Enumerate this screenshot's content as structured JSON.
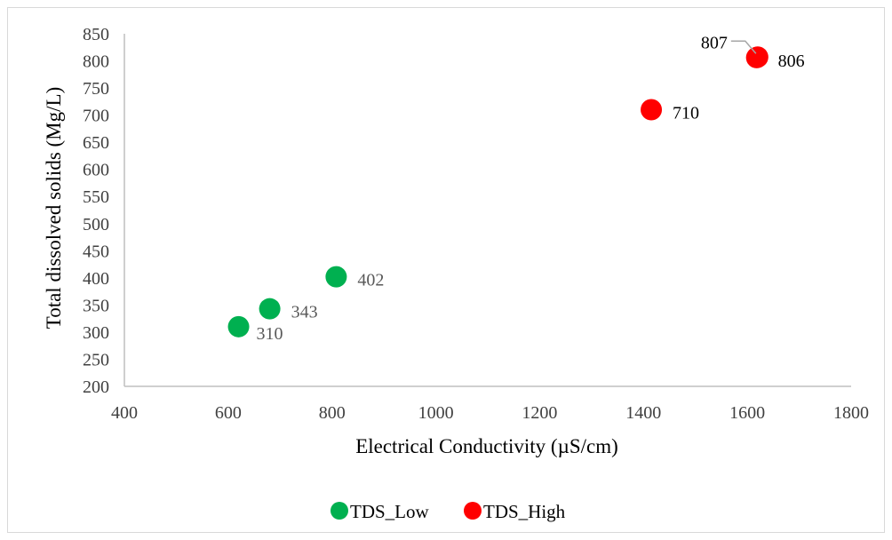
{
  "chart_data": {
    "type": "scatter",
    "xlabel": "Electrical Conductivity (µS/cm)",
    "ylabel": "Total dissolved solids (Mg/L)",
    "xlim": [
      400,
      1800
    ],
    "ylim": [
      200,
      850
    ],
    "xticks": [
      400,
      600,
      800,
      1000,
      1200,
      1400,
      1600,
      1800
    ],
    "yticks": [
      200,
      250,
      300,
      350,
      400,
      450,
      500,
      550,
      600,
      650,
      700,
      750,
      800,
      850
    ],
    "grid": false,
    "legend_position": "bottom",
    "series": [
      {
        "name": "TDS_Low",
        "color": "#00b050",
        "label_color": "#595959",
        "points": [
          {
            "x": 620,
            "y": 310,
            "label": "310"
          },
          {
            "x": 680,
            "y": 343,
            "label": "343"
          },
          {
            "x": 808,
            "y": 402,
            "label": "402"
          }
        ]
      },
      {
        "name": "TDS_High",
        "color": "#ff0000",
        "label_color": "#000000",
        "points": [
          {
            "x": 1415,
            "y": 710,
            "label": "710"
          },
          {
            "x": 1618,
            "y": 806,
            "label": "806"
          },
          {
            "x": 1620,
            "y": 807,
            "label": "807"
          }
        ]
      }
    ]
  }
}
